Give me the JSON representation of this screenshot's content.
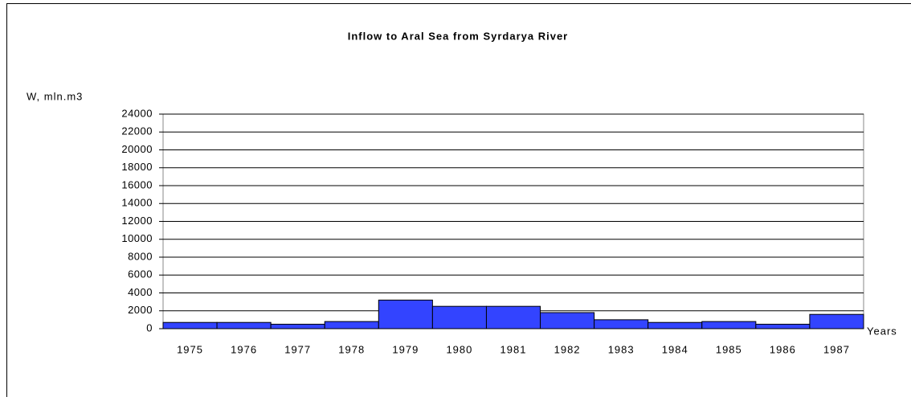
{
  "chart_data": {
    "type": "bar",
    "title": "Inflow to Aral Sea from Syrdarya River",
    "y_label": "W, mln.m3",
    "x_label": "Years",
    "categories": [
      "1975",
      "1976",
      "1977",
      "1978",
      "1979",
      "1980",
      "1981",
      "1982",
      "1983",
      "1984",
      "1985",
      "1986",
      "1987"
    ],
    "values": [
      700,
      700,
      500,
      800,
      3200,
      2500,
      2500,
      1800,
      1000,
      700,
      800,
      500,
      1600
    ],
    "color": "#3344ff",
    "ylim": [
      0,
      24000
    ],
    "yticks": [
      0,
      2000,
      4000,
      6000,
      8000,
      10000,
      12000,
      14000,
      16000,
      18000,
      20000,
      22000,
      24000
    ],
    "grid": true
  }
}
